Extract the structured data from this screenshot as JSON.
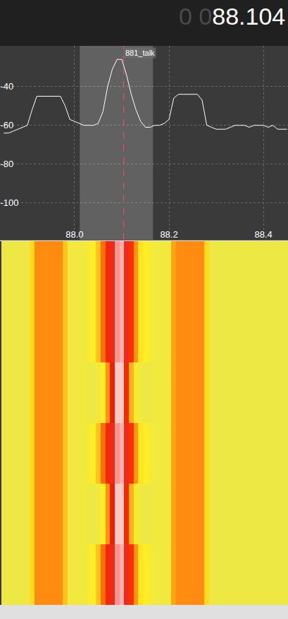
{
  "chart_data": {
    "type": "line",
    "color": "#ffffff",
    "readout": {
      "dim": "0 0",
      "value": "88.104"
    },
    "marker": {
      "x": 88.104,
      "label": "881_talk"
    },
    "filter": [
      88.011,
      88.166
    ],
    "x": [
      87.85,
      87.86,
      87.87,
      87.88,
      87.89,
      87.9,
      87.91,
      87.92,
      87.93,
      87.94,
      87.95,
      87.96,
      87.97,
      87.98,
      87.99,
      88.0,
      88.01,
      88.02,
      88.03,
      88.04,
      88.05,
      88.06,
      88.07,
      88.08,
      88.09,
      88.1,
      88.11,
      88.12,
      88.13,
      88.14,
      88.15,
      88.16,
      88.17,
      88.18,
      88.19,
      88.2,
      88.21,
      88.22,
      88.23,
      88.24,
      88.25,
      88.26,
      88.27,
      88.28,
      88.29,
      88.3,
      88.31,
      88.32,
      88.33,
      88.34,
      88.35,
      88.36,
      88.37,
      88.38,
      88.39,
      88.4,
      88.41,
      88.42,
      88.43,
      88.44,
      88.45
    ],
    "values": [
      -64,
      -64,
      -63,
      -62,
      -61,
      -60,
      -52,
      -45,
      -45,
      -45,
      -45,
      -45,
      -45,
      -50,
      -57,
      -58,
      -59,
      -60,
      -60,
      -60,
      -59,
      -53,
      -40,
      -31,
      -26,
      -26,
      -34,
      -44,
      -52,
      -58,
      -61,
      -61,
      -60,
      -60,
      -59,
      -57,
      -46,
      -44,
      -44,
      -44,
      -44,
      -44,
      -47,
      -60,
      -61,
      -62,
      -62,
      -62,
      -61,
      -60,
      -60,
      -60,
      -61,
      -60,
      -60,
      -60,
      -61,
      -60,
      -62,
      -62,
      -62
    ],
    "xlim": [
      87.842,
      88.452
    ],
    "ylim": [
      -119,
      -19
    ],
    "xticks": [
      {
        "value": 88,
        "label": "88.0"
      },
      88.2,
      88.4
    ],
    "yticks": [
      -40,
      -60,
      -80,
      -100
    ],
    "grid": true,
    "waterfall": {
      "zlim": [
        -70,
        -20
      ],
      "z": [
        [
          -63,
          -63,
          -63,
          -63,
          -63,
          -63,
          -55,
          -45,
          -45,
          -45,
          -45,
          -45,
          -45,
          -52,
          -62,
          -62,
          -62,
          -62,
          -60,
          -58,
          -52,
          -42,
          -34,
          -28,
          -24,
          -23,
          -28,
          -36,
          -46,
          -56,
          -58,
          -60,
          -62,
          -62,
          -62,
          -62,
          -48,
          -45,
          -45,
          -45,
          -45,
          -45,
          -45,
          -55,
          -63,
          -63,
          -63,
          -63,
          -63,
          -63,
          -63,
          -63,
          -63,
          -63,
          -63,
          -63,
          -63,
          -63,
          -63,
          -63,
          -63
        ],
        [
          -63,
          -63,
          -63,
          -63,
          -63,
          -63,
          -55,
          -45,
          -45,
          -45,
          -45,
          -45,
          -45,
          -52,
          -62,
          -62,
          -62,
          -62,
          -60,
          -58,
          -52,
          -42,
          -34,
          -28,
          -24,
          -23,
          -28,
          -36,
          -46,
          -56,
          -58,
          -60,
          -62,
          -62,
          -62,
          -62,
          -48,
          -45,
          -45,
          -45,
          -45,
          -45,
          -45,
          -55,
          -63,
          -63,
          -63,
          -63,
          -63,
          -63,
          -63,
          -63,
          -63,
          -63,
          -63,
          -63,
          -63,
          -63,
          -63,
          -63,
          -63
        ],
        [
          -63,
          -63,
          -63,
          -63,
          -63,
          -63,
          -55,
          -45,
          -45,
          -45,
          -45,
          -45,
          -45,
          -52,
          -62,
          -62,
          -62,
          -62,
          -63,
          -63,
          -62,
          -58,
          -46,
          -32,
          -22,
          -22,
          -34,
          -50,
          -60,
          -62,
          -63,
          -63,
          -62,
          -62,
          -62,
          -62,
          -48,
          -45,
          -45,
          -45,
          -45,
          -45,
          -45,
          -55,
          -63,
          -63,
          -63,
          -63,
          -63,
          -63,
          -63,
          -63,
          -63,
          -63,
          -63,
          -63,
          -63,
          -63,
          -63,
          -63,
          -63
        ],
        [
          -63,
          -63,
          -63,
          -63,
          -63,
          -63,
          -55,
          -45,
          -45,
          -45,
          -45,
          -45,
          -45,
          -52,
          -62,
          -62,
          -62,
          -62,
          -60,
          -58,
          -52,
          -42,
          -34,
          -28,
          -24,
          -23,
          -28,
          -36,
          -46,
          -56,
          -58,
          -60,
          -62,
          -62,
          -62,
          -62,
          -48,
          -45,
          -45,
          -45,
          -45,
          -45,
          -45,
          -55,
          -63,
          -63,
          -63,
          -63,
          -63,
          -63,
          -63,
          -63,
          -63,
          -63,
          -63,
          -63,
          -63,
          -63,
          -63,
          -63,
          -63
        ],
        [
          -63,
          -63,
          -63,
          -63,
          -63,
          -63,
          -55,
          -45,
          -45,
          -45,
          -45,
          -45,
          -45,
          -52,
          -62,
          -62,
          -62,
          -62,
          -63,
          -63,
          -62,
          -58,
          -46,
          -32,
          -22,
          -22,
          -34,
          -50,
          -60,
          -62,
          -63,
          -63,
          -62,
          -62,
          -62,
          -62,
          -48,
          -45,
          -45,
          -45,
          -45,
          -45,
          -45,
          -55,
          -63,
          -63,
          -63,
          -63,
          -63,
          -63,
          -63,
          -63,
          -63,
          -63,
          -63,
          -63,
          -63,
          -63,
          -63,
          -63,
          -63
        ],
        [
          -63,
          -63,
          -63,
          -63,
          -63,
          -63,
          -55,
          -45,
          -45,
          -45,
          -45,
          -45,
          -45,
          -52,
          -62,
          -62,
          -62,
          -62,
          -60,
          -58,
          -52,
          -42,
          -34,
          -28,
          -24,
          -23,
          -28,
          -36,
          -46,
          -56,
          -58,
          -60,
          -62,
          -62,
          -62,
          -62,
          -48,
          -45,
          -45,
          -45,
          -45,
          -45,
          -45,
          -55,
          -63,
          -63,
          -63,
          -63,
          -63,
          -63,
          -63,
          -63,
          -63,
          -63,
          -63,
          -63,
          -63,
          -63,
          -63,
          -63,
          -63
        ]
      ]
    }
  }
}
